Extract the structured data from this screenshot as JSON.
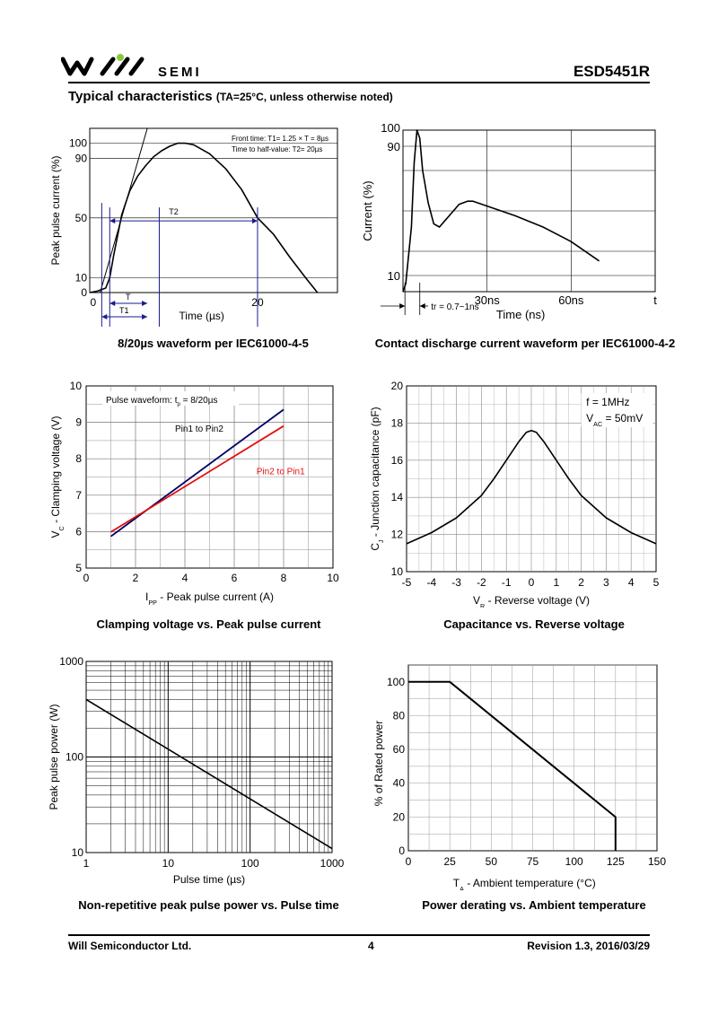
{
  "header": {
    "brand": "SEMI",
    "part_number": "ESD5451R",
    "section_title": "Typical characteristics",
    "section_condition": "(TA=25°C, unless otherwise noted)"
  },
  "footer": {
    "company": "Will Semiconductor Ltd.",
    "page": "4",
    "revision": "Revision 1.3, 2016/03/29"
  },
  "chart_data": [
    {
      "id": "c1",
      "type": "line",
      "caption": "8/20µs waveform per IEC61000-4-5",
      "xlabel": "Time (µs)",
      "ylabel": "Peak pulse current (%)",
      "xlim": [
        -1,
        30
      ],
      "ylim": [
        0,
        110
      ],
      "ytick_labels": [
        "0",
        "10",
        "50",
        "90",
        "100"
      ],
      "xtick_labels": [
        "0",
        "20"
      ],
      "annotations": [
        "Front time: T1= 1.25 × T = 8µs",
        "Time to half-value: T2= 20µs",
        "T2",
        "T",
        "T1"
      ],
      "series": [
        {
          "x": [
            -1,
            0,
            1,
            1.5,
            2,
            3,
            4,
            5,
            6,
            7,
            8,
            9,
            10,
            11,
            12,
            14,
            16,
            18,
            20,
            22,
            24,
            26,
            27.5
          ],
          "y": [
            0,
            1,
            3,
            10,
            25,
            52,
            68,
            78,
            85,
            91,
            95,
            98,
            100,
            100,
            99,
            93,
            83,
            69,
            50,
            39,
            24,
            10,
            0
          ]
        }
      ]
    },
    {
      "id": "c2",
      "type": "line",
      "caption": "Contact discharge current waveform per IEC61000-4-2",
      "xlabel": "Time (ns)",
      "ylabel": "Current (%)",
      "xlim": [
        0,
        90
      ],
      "ylim": [
        0,
        100
      ],
      "ytick_labels": [
        "10",
        "90",
        "100"
      ],
      "xtick_labels": [
        "30ns",
        "60ns",
        "t"
      ],
      "annotations": [
        "tr = 0.7~1ns"
      ],
      "series": [
        {
          "x": [
            0,
            1,
            3,
            4,
            5,
            6,
            7,
            9,
            11,
            13,
            15,
            17,
            20,
            23,
            25,
            30,
            40,
            50,
            60,
            70
          ],
          "y": [
            0,
            5,
            40,
            80,
            100,
            95,
            75,
            55,
            42,
            40,
            44,
            48,
            54,
            56,
            56,
            53,
            47,
            40,
            31,
            19
          ]
        }
      ]
    },
    {
      "id": "c3",
      "type": "line",
      "caption": "Clamping voltage vs. Peak pulse current",
      "xlabel": "IPP - Peak pulse current (A)",
      "ylabel": "VC - Clamping voltage (V)",
      "xlim": [
        0,
        10
      ],
      "ylim": [
        5,
        10
      ],
      "xtick_labels": [
        "0",
        "2",
        "4",
        "6",
        "8",
        "10"
      ],
      "ytick_labels": [
        "5",
        "6",
        "7",
        "8",
        "9",
        "10"
      ],
      "annotations": [
        "Pulse waveform: tp = 8/20µs"
      ],
      "series": [
        {
          "name": "Pin1 to Pin2",
          "color": "#000066",
          "x": [
            1,
            8
          ],
          "y": [
            5.87,
            9.35
          ]
        },
        {
          "name": "Pin2 to Pin1",
          "color": "#e01010",
          "x": [
            1,
            8
          ],
          "y": [
            5.99,
            8.9
          ]
        }
      ]
    },
    {
      "id": "c4",
      "type": "line",
      "caption": "Capacitance vs. Reverse voltage",
      "xlabel": "VR - Reverse voltage (V)",
      "ylabel": "CJ - Junction capacitance (pF)",
      "xlim": [
        -5,
        5
      ],
      "ylim": [
        10,
        20
      ],
      "xtick_labels": [
        "-5",
        "-4",
        "-3",
        "-2",
        "-1",
        "0",
        "1",
        "2",
        "3",
        "4",
        "5"
      ],
      "ytick_labels": [
        "10",
        "12",
        "14",
        "16",
        "18",
        "20"
      ],
      "annotations": [
        "f = 1MHz",
        "VAC = 50mV"
      ],
      "series": [
        {
          "x": [
            -5,
            -4,
            -3,
            -2,
            -1.5,
            -1,
            -0.5,
            -0.2,
            0,
            0.2,
            0.5,
            1,
            1.5,
            2,
            3,
            4,
            5
          ],
          "y": [
            11.5,
            12.1,
            12.9,
            14.1,
            15,
            16,
            17,
            17.5,
            17.6,
            17.5,
            17,
            16,
            15,
            14.1,
            12.9,
            12.1,
            11.5
          ]
        }
      ]
    },
    {
      "id": "c5",
      "type": "line",
      "caption": "Non-repetitive peak pulse power vs. Pulse time",
      "xlabel": "Pulse time (µs)",
      "ylabel": "Peak pulse power (W)",
      "xscale": "log",
      "yscale": "log",
      "xlim": [
        1,
        1000
      ],
      "ylim": [
        10,
        1000
      ],
      "xtick_labels": [
        "1",
        "10",
        "100",
        "1000"
      ],
      "ytick_labels": [
        "10",
        "100",
        "1000"
      ],
      "series": [
        {
          "x": [
            1,
            1000
          ],
          "y": [
            400,
            11
          ]
        }
      ]
    },
    {
      "id": "c6",
      "type": "line",
      "caption": "Power derating vs. Ambient temperature",
      "xlabel": "TA - Ambient temperature (°C)",
      "ylabel": "% of Rated power",
      "xlim": [
        0,
        150
      ],
      "ylim": [
        0,
        110
      ],
      "xtick_labels": [
        "0",
        "25",
        "50",
        "75",
        "100",
        "125",
        "150"
      ],
      "ytick_labels": [
        "0",
        "20",
        "40",
        "60",
        "80",
        "100"
      ],
      "series": [
        {
          "x": [
            0,
            25,
            125,
            125
          ],
          "y": [
            100,
            100,
            20,
            0
          ]
        }
      ]
    }
  ]
}
